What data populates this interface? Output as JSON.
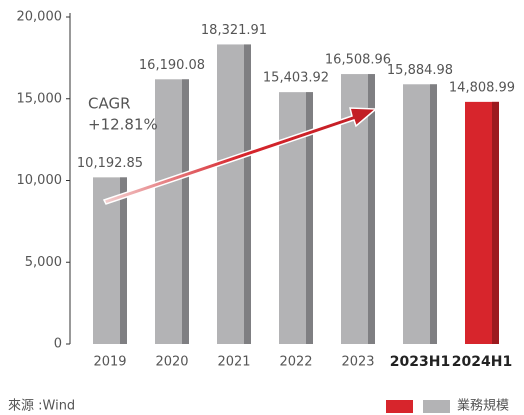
{
  "chart_data": {
    "type": "bar",
    "categories": [
      "2019",
      "2020",
      "2021",
      "2022",
      "2023",
      "2023H1",
      "2024H1"
    ],
    "bold": [
      false,
      false,
      false,
      false,
      false,
      true,
      true
    ],
    "values": [
      10192.85,
      16190.08,
      18321.91,
      15403.92,
      16508.96,
      15884.98,
      14808.99
    ],
    "value_labels": [
      "10,192.85",
      "16,190.08",
      "18,321.91",
      "15,403.92",
      "16,508.96",
      "15,884.98",
      "14,808.99"
    ],
    "colors": [
      "#b3b3b5",
      "#b3b3b5",
      "#b3b3b5",
      "#b3b3b5",
      "#b3b3b5",
      "#b3b3b5",
      "#d7252c"
    ],
    "shade_colors": [
      "#7f7f82",
      "#7f7f82",
      "#7f7f82",
      "#7f7f82",
      "#7f7f82",
      "#7f7f82",
      "#9c1a1f"
    ],
    "ylim": [
      0,
      20000
    ],
    "yticks": [
      0,
      {
        "value": 5000,
        "label": "5,000"
      },
      {
        "value": 10000,
        "label": "10,000"
      },
      {
        "value": 15000,
        "label": "15,000"
      },
      {
        "value": 20000,
        "label": "20,000"
      }
    ],
    "annotation": [
      "CAGR",
      "+12.81%"
    ],
    "legend_label": "業務規模",
    "legend_colors": [
      "#d7252c",
      "#b3b3b5"
    ],
    "source": "來源 :Wind"
  }
}
